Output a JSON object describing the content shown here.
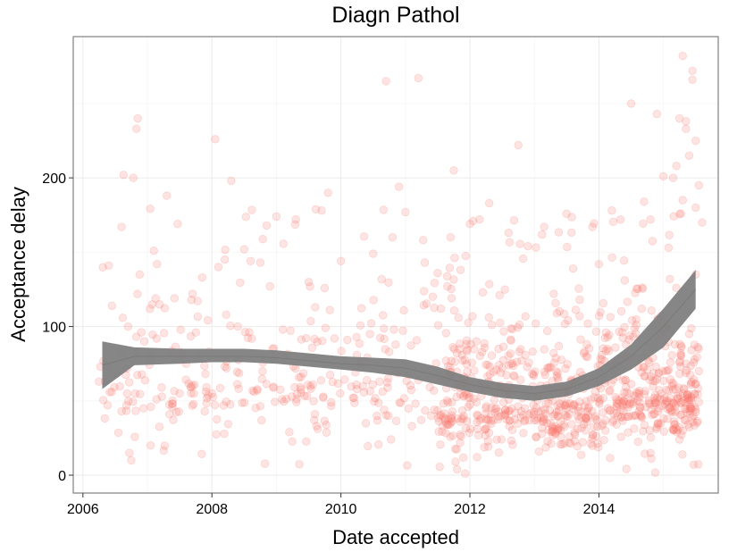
{
  "chart_data": {
    "type": "scatter",
    "title": "Diagn Pathol",
    "xlabel": "Date accepted",
    "ylabel": "Acceptance delay",
    "xlim": [
      2005.85,
      2015.85
    ],
    "ylim": [
      -12,
      295
    ],
    "x_ticks": [
      2006,
      2008,
      2010,
      2012,
      2014
    ],
    "x_tick_labels": [
      "2006",
      "2008",
      "2010",
      "2012",
      "2014"
    ],
    "y_ticks": [
      0,
      100,
      200
    ],
    "y_tick_labels": [
      "0",
      "100",
      "200"
    ],
    "grid": true,
    "point_color": "#f8766d",
    "smooth_color": "#7f7f7f",
    "points_note_count": 1100,
    "smooth": {
      "x": [
        2006.3,
        2006.8,
        2007.5,
        2008.0,
        2008.5,
        2009.0,
        2009.5,
        2010.0,
        2010.5,
        2011.0,
        2011.5,
        2012.0,
        2012.5,
        2013.0,
        2013.5,
        2014.0,
        2014.5,
        2015.0,
        2015.5
      ],
      "y": [
        74,
        80,
        80,
        80,
        80,
        79,
        77,
        75,
        74,
        72,
        67,
        61,
        57,
        55,
        58,
        66,
        80,
        100,
        125
      ],
      "lower": [
        58,
        74,
        75,
        76,
        76,
        75,
        73,
        71,
        69,
        66,
        61,
        56,
        52,
        50,
        53,
        60,
        71,
        86,
        112
      ],
      "upper": [
        90,
        86,
        85,
        85,
        85,
        84,
        82,
        80,
        79,
        78,
        73,
        66,
        62,
        60,
        63,
        72,
        88,
        112,
        138
      ]
    },
    "series": [
      {
        "x": [
          2006.27,
          2006.4,
          2006.25,
          2006.45,
          2006.6,
          2006.63,
          2006.6,
          2006.72,
          2006.78,
          2006.75,
          2006.7,
          2006.85,
          2006.83,
          2006.88,
          2006.95,
          2007.05,
          2007.1,
          2007.15,
          2007.22,
          2007.3,
          2007.42,
          2007.5,
          2007.6,
          2007.7,
          2007.75,
          2007.85,
          2007.9,
          2008.0,
          2008.1,
          2008.05,
          2008.2,
          2008.3,
          2008.4,
          2008.5,
          2008.6,
          2008.7,
          2008.75,
          2008.85,
          2008.9,
          2009.0,
          2009.1,
          2009.2,
          2009.3,
          2009.5,
          2009.6,
          2009.7,
          2009.8,
          2009.85,
          2009.9,
          2010.0,
          2010.1,
          2010.3,
          2010.45,
          2010.5,
          2010.6,
          2010.7,
          2010.75,
          2010.8,
          2010.9,
          2011.0,
          2011.1,
          2011.2,
          2011.3,
          2011.4,
          2011.5,
          2011.55,
          2011.65,
          2011.7,
          2011.75,
          2011.8,
          2011.85,
          2011.9,
          2012.0,
          2012.05,
          2012.1,
          2012.15,
          2012.2,
          2012.3,
          2012.4,
          2012.5,
          2012.6,
          2012.7,
          2012.75,
          2012.8,
          2012.85,
          2012.9,
          2013.0,
          2013.1,
          2013.15,
          2013.2,
          2013.3,
          2013.4,
          2013.5,
          2013.6,
          2013.7,
          2013.75,
          2013.8,
          2013.9,
          2014.0,
          2014.1,
          2014.2,
          2014.3,
          2014.4,
          2014.5,
          2014.6,
          2014.7,
          2014.8,
          2014.9,
          2015.0,
          2015.1,
          2015.15,
          2015.2,
          2015.25,
          2015.3,
          2015.35,
          2015.4,
          2015.45,
          2015.5,
          2015.55,
          2015.6,
          2015.45,
          2015.35,
          2015.5,
          2015.2,
          2015.4,
          2015.3,
          2015.5,
          2014.85,
          2015.35,
          2015.3
        ],
        "y": [
          73,
          141,
          63,
          114,
          167,
          202,
          43,
          15,
          200,
          10,
          100,
          240,
          233,
          135,
          90,
          20,
          151,
          142,
          59,
          188,
          119,
          55,
          75,
          122,
          96,
          133,
          68,
          55,
          140,
          226,
          145,
          198,
          100,
          152,
          144,
          57,
          143,
          168,
          127,
          174,
          98,
          29,
          172,
          130,
          113,
          178,
          190,
          49,
          92,
          144,
          91,
          75,
          95,
          149,
          63,
          265,
          83,
          160,
          194,
          177,
          33,
          267,
          143,
          40,
          136,
          112,
          127,
          160,
          205,
          82,
          36,
          53,
          169,
          171,
          90,
          172,
          123,
          183,
          55,
          72,
          163,
          42,
          222,
          77,
          45,
          154,
          37,
          53,
          167,
          97,
          122,
          46,
          57,
          139,
          107,
          67,
          80,
          167,
          142,
          30,
          178,
          73,
          131,
          250,
          55,
          184,
          172,
          243,
          201,
          132,
          200,
          208,
          240,
          282,
          233,
          215,
          272,
          225,
          195,
          170,
          266,
          238,
          135,
          126,
          95,
          185,
          180,
          100,
          75,
          30
        ],
        "jitter_seed": 7
      }
    ]
  }
}
